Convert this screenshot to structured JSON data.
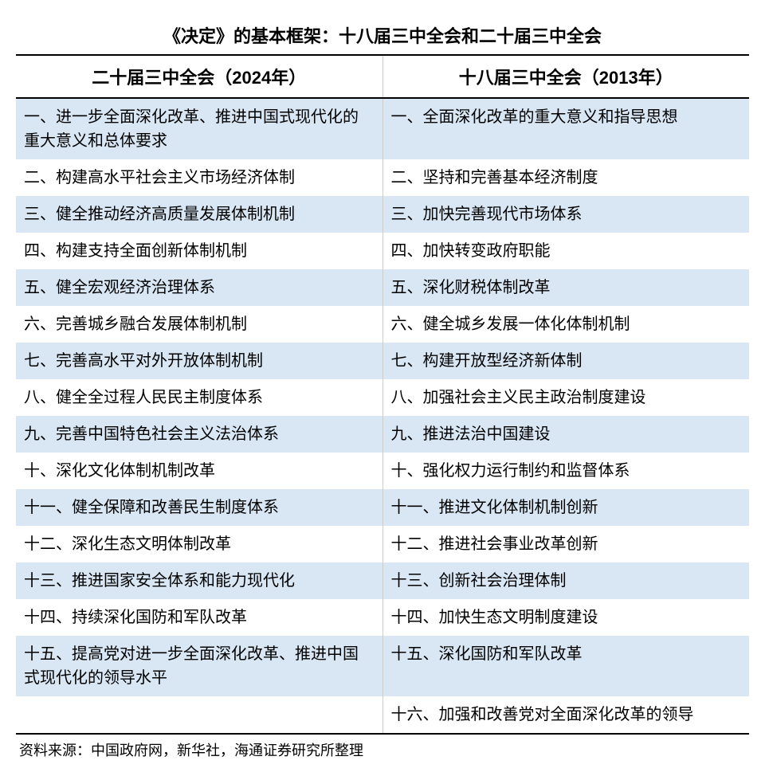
{
  "title": "《决定》的基本框架：十八届三中全会和二十届三中全会",
  "headers": {
    "left": "二十届三中全会（2024年）",
    "right": "十八届三中全会（2013年）"
  },
  "rows": [
    {
      "left": "一、进一步全面深化改革、推进中国式现代化的重大意义和总体要求",
      "right": "一、全面深化改革的重大意义和指导思想"
    },
    {
      "left": "二、构建高水平社会主义市场经济体制",
      "right": "二、坚持和完善基本经济制度"
    },
    {
      "left": "三、健全推动经济高质量发展体制机制",
      "right": "三、加快完善现代市场体系"
    },
    {
      "left": "四、构建支持全面创新体制机制",
      "right": "四、加快转变政府职能"
    },
    {
      "left": "五、健全宏观经济治理体系",
      "right": "五、深化财税体制改革"
    },
    {
      "left": "六、完善城乡融合发展体制机制",
      "right": "六、健全城乡发展一体化体制机制"
    },
    {
      "left": "七、完善高水平对外开放体制机制",
      "right": "七、构建开放型经济新体制"
    },
    {
      "left": "八、健全全过程人民民主制度体系",
      "right": "八、加强社会主义民主政治制度建设"
    },
    {
      "left": "九、完善中国特色社会主义法治体系",
      "right": "九、推进法治中国建设"
    },
    {
      "left": "十、深化文化体制机制改革",
      "right": "十、强化权力运行制约和监督体系"
    },
    {
      "left": "十一、健全保障和改善民生制度体系",
      "right": "十一、推进文化体制机制创新"
    },
    {
      "left": "十二、深化生态文明体制改革",
      "right": "十二、推进社会事业改革创新"
    },
    {
      "left": "十三、推进国家安全体系和能力现代化",
      "right": "十三、创新社会治理体制"
    },
    {
      "left": "十四、持续深化国防和军队改革",
      "right": "十四、加快生态文明制度建设"
    },
    {
      "left": "十五、提高党对进一步全面深化改革、推进中国式现代化的领导水平",
      "right": "十五、深化国防和军队改革"
    },
    {
      "left": "",
      "right": "十六、加强和改善党对全面深化改革的领导"
    }
  ],
  "source": "资料来源：中国政府网，新华社，海通证券研究所整理",
  "styling": {
    "odd_row_bg": "#d9e7f5",
    "even_row_bg": "#ffffff",
    "border_color": "#000000",
    "divider_color": "#cccccc",
    "title_fontsize": 22,
    "header_fontsize": 22,
    "cell_fontsize": 20,
    "source_fontsize": 18,
    "text_color": "#000000"
  }
}
